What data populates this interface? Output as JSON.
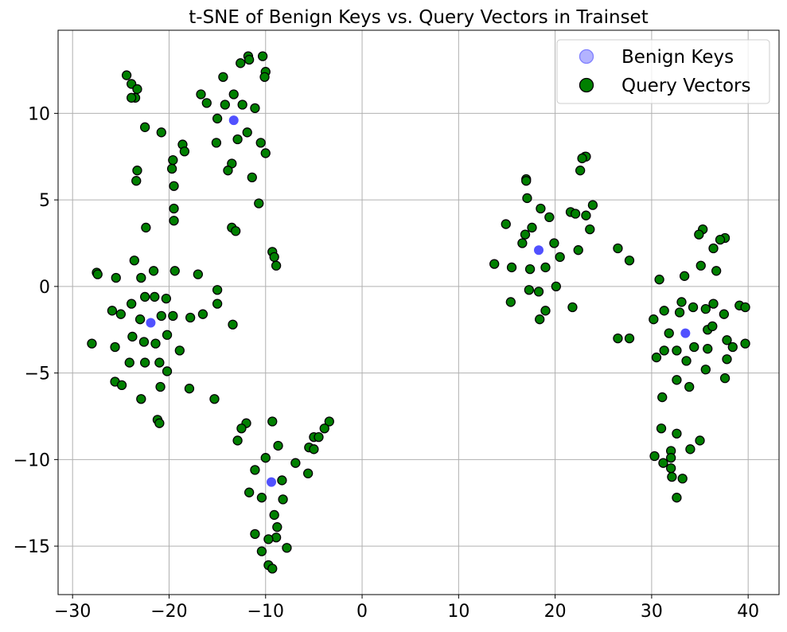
{
  "chart_data": {
    "type": "scatter",
    "title": "t-SNE of Benign Keys vs. Query Vectors in Trainset",
    "xlabel": "",
    "ylabel": "",
    "xlim": [
      -31.5,
      43.2
    ],
    "ylim": [
      -17.8,
      14.8
    ],
    "xticks": [
      -30,
      -20,
      -10,
      0,
      10,
      20,
      30,
      40
    ],
    "yticks": [
      -15,
      -10,
      -5,
      0,
      5,
      10
    ],
    "xtick_labels": [
      "−30",
      "−20",
      "−10",
      "0",
      "10",
      "20",
      "30",
      "40"
    ],
    "ytick_labels": [
      "−15",
      "−10",
      "−5",
      "0",
      "5",
      "10"
    ],
    "grid": true,
    "legend_position": "top-right",
    "series": [
      {
        "name": "Query Vectors",
        "color": "#008000",
        "edge_color": "#000000",
        "points": [
          [
            -24.4,
            12.2
          ],
          [
            -23.9,
            11.7
          ],
          [
            -23.3,
            11.4
          ],
          [
            -23.5,
            10.9
          ],
          [
            -23.9,
            10.9
          ],
          [
            -22.5,
            9.2
          ],
          [
            -20.8,
            8.9
          ],
          [
            -18.6,
            8.2
          ],
          [
            -18.4,
            7.8
          ],
          [
            -19.6,
            7.3
          ],
          [
            -19.7,
            6.8
          ],
          [
            -23.3,
            6.7
          ],
          [
            -23.4,
            6.1
          ],
          [
            -19.5,
            5.8
          ],
          [
            -19.5,
            4.5
          ],
          [
            -19.5,
            3.8
          ],
          [
            -22.4,
            3.4
          ],
          [
            -11.8,
            13.3
          ],
          [
            -10.3,
            13.3
          ],
          [
            -11.7,
            13.1
          ],
          [
            -12.6,
            12.9
          ],
          [
            -10.0,
            12.4
          ],
          [
            -14.4,
            12.1
          ],
          [
            -10.1,
            12.1
          ],
          [
            -16.7,
            11.1
          ],
          [
            -13.3,
            11.1
          ],
          [
            -16.1,
            10.6
          ],
          [
            -14.2,
            10.5
          ],
          [
            -12.4,
            10.5
          ],
          [
            -11.1,
            10.3
          ],
          [
            -15.0,
            9.7
          ],
          [
            -11.9,
            8.9
          ],
          [
            -15.1,
            8.3
          ],
          [
            -12.9,
            8.5
          ],
          [
            -10.5,
            8.3
          ],
          [
            -10.0,
            7.7
          ],
          [
            -13.5,
            7.1
          ],
          [
            -13.9,
            6.7
          ],
          [
            -11.4,
            6.3
          ],
          [
            -10.7,
            4.8
          ],
          [
            -13.5,
            3.4
          ],
          [
            -13.1,
            3.2
          ],
          [
            -9.3,
            2.0
          ],
          [
            -9.1,
            1.7
          ],
          [
            -8.9,
            1.2
          ],
          [
            -27.5,
            0.8
          ],
          [
            -27.4,
            0.7
          ],
          [
            -25.5,
            0.5
          ],
          [
            -23.6,
            1.5
          ],
          [
            -21.6,
            0.9
          ],
          [
            -19.4,
            0.9
          ],
          [
            -22.9,
            0.5
          ],
          [
            -17.0,
            0.7
          ],
          [
            -15.0,
            -0.2
          ],
          [
            -22.5,
            -0.6
          ],
          [
            -21.5,
            -0.6
          ],
          [
            -20.3,
            -0.7
          ],
          [
            -23.9,
            -1.0
          ],
          [
            -15.0,
            -1.0
          ],
          [
            -25.9,
            -1.4
          ],
          [
            -25.0,
            -1.6
          ],
          [
            -20.8,
            -1.7
          ],
          [
            -19.6,
            -1.7
          ],
          [
            -16.5,
            -1.6
          ],
          [
            -17.8,
            -1.8
          ],
          [
            -23.0,
            -1.9
          ],
          [
            -13.4,
            -2.2
          ],
          [
            -23.8,
            -2.9
          ],
          [
            -20.2,
            -2.8
          ],
          [
            -28.0,
            -3.3
          ],
          [
            -22.6,
            -3.2
          ],
          [
            -21.4,
            -3.3
          ],
          [
            -25.6,
            -3.5
          ],
          [
            -18.9,
            -3.7
          ],
          [
            -24.1,
            -4.4
          ],
          [
            -22.5,
            -4.4
          ],
          [
            -21.0,
            -4.4
          ],
          [
            -20.2,
            -4.9
          ],
          [
            -25.6,
            -5.5
          ],
          [
            -24.9,
            -5.7
          ],
          [
            -20.9,
            -5.8
          ],
          [
            -17.9,
            -5.9
          ],
          [
            -22.9,
            -6.5
          ],
          [
            -15.3,
            -6.5
          ],
          [
            -21.2,
            -7.7
          ],
          [
            -21.0,
            -7.9
          ],
          [
            -9.3,
            -7.8
          ],
          [
            -3.4,
            -7.8
          ],
          [
            -12.0,
            -7.9
          ],
          [
            -12.5,
            -8.2
          ],
          [
            -3.9,
            -8.2
          ],
          [
            -5.0,
            -8.7
          ],
          [
            -4.5,
            -8.7
          ],
          [
            -12.9,
            -8.9
          ],
          [
            -8.7,
            -9.2
          ],
          [
            -5.5,
            -9.3
          ],
          [
            -5.0,
            -9.4
          ],
          [
            -10.0,
            -9.9
          ],
          [
            -6.9,
            -10.2
          ],
          [
            -11.1,
            -10.6
          ],
          [
            -5.6,
            -10.8
          ],
          [
            -8.3,
            -11.2
          ],
          [
            -11.7,
            -11.9
          ],
          [
            -10.4,
            -12.2
          ],
          [
            -8.2,
            -12.3
          ],
          [
            -9.1,
            -13.2
          ],
          [
            -8.8,
            -13.9
          ],
          [
            -11.1,
            -14.3
          ],
          [
            -8.9,
            -14.5
          ],
          [
            -9.7,
            -14.6
          ],
          [
            -7.8,
            -15.1
          ],
          [
            -10.4,
            -15.3
          ],
          [
            -9.7,
            -16.1
          ],
          [
            -9.3,
            -16.3
          ],
          [
            23.1,
            7.5
          ],
          [
            23.2,
            7.5
          ],
          [
            22.8,
            7.4
          ],
          [
            22.6,
            6.7
          ],
          [
            17.0,
            6.2
          ],
          [
            17.0,
            6.1
          ],
          [
            17.1,
            5.1
          ],
          [
            23.9,
            4.7
          ],
          [
            18.5,
            4.5
          ],
          [
            21.6,
            4.3
          ],
          [
            22.1,
            4.2
          ],
          [
            23.2,
            4.1
          ],
          [
            19.4,
            4.0
          ],
          [
            14.9,
            3.6
          ],
          [
            17.6,
            3.4
          ],
          [
            23.6,
            3.3
          ],
          [
            16.9,
            3.0
          ],
          [
            16.6,
            2.5
          ],
          [
            19.9,
            2.5
          ],
          [
            22.4,
            2.1
          ],
          [
            26.5,
            2.2
          ],
          [
            20.5,
            1.7
          ],
          [
            27.7,
            1.5
          ],
          [
            13.7,
            1.3
          ],
          [
            15.5,
            1.1
          ],
          [
            17.4,
            1.0
          ],
          [
            19.0,
            1.1
          ],
          [
            20.1,
            0.0
          ],
          [
            17.3,
            -0.2
          ],
          [
            18.3,
            -0.3
          ],
          [
            15.4,
            -0.9
          ],
          [
            21.8,
            -1.2
          ],
          [
            19.0,
            -1.4
          ],
          [
            18.4,
            -1.9
          ],
          [
            35.3,
            3.3
          ],
          [
            34.9,
            3.0
          ],
          [
            37.6,
            2.8
          ],
          [
            37.1,
            2.7
          ],
          [
            36.4,
            2.2
          ],
          [
            35.1,
            1.2
          ],
          [
            36.7,
            0.9
          ],
          [
            33.4,
            0.6
          ],
          [
            30.8,
            0.4
          ],
          [
            33.1,
            -0.9
          ],
          [
            36.4,
            -1.0
          ],
          [
            34.3,
            -1.2
          ],
          [
            35.6,
            -1.3
          ],
          [
            39.1,
            -1.1
          ],
          [
            39.7,
            -1.2
          ],
          [
            31.3,
            -1.4
          ],
          [
            32.9,
            -1.5
          ],
          [
            37.5,
            -1.6
          ],
          [
            30.2,
            -1.9
          ],
          [
            35.8,
            -2.5
          ],
          [
            36.3,
            -2.3
          ],
          [
            31.8,
            -2.7
          ],
          [
            26.5,
            -3.0
          ],
          [
            27.7,
            -3.0
          ],
          [
            37.8,
            -3.1
          ],
          [
            39.7,
            -3.3
          ],
          [
            38.4,
            -3.5
          ],
          [
            34.4,
            -3.5
          ],
          [
            35.8,
            -3.6
          ],
          [
            31.3,
            -3.7
          ],
          [
            32.6,
            -3.7
          ],
          [
            30.5,
            -4.1
          ],
          [
            33.6,
            -4.3
          ],
          [
            37.8,
            -4.2
          ],
          [
            35.6,
            -4.8
          ],
          [
            37.6,
            -5.3
          ],
          [
            32.6,
            -5.4
          ],
          [
            33.9,
            -5.8
          ],
          [
            31.1,
            -6.4
          ],
          [
            31.0,
            -8.2
          ],
          [
            32.6,
            -8.5
          ],
          [
            35.0,
            -8.9
          ],
          [
            34.0,
            -9.4
          ],
          [
            32.0,
            -9.5
          ],
          [
            30.3,
            -9.8
          ],
          [
            32.0,
            -9.9
          ],
          [
            31.2,
            -10.2
          ],
          [
            32.0,
            -10.5
          ],
          [
            32.1,
            -11.0
          ],
          [
            33.2,
            -11.1
          ],
          [
            32.6,
            -12.2
          ]
        ]
      },
      {
        "name": "Benign Keys",
        "color": "#3333ff",
        "points": [
          [
            -13.3,
            9.6
          ],
          [
            -21.9,
            -2.1
          ],
          [
            -9.4,
            -11.3
          ],
          [
            18.3,
            2.1
          ],
          [
            33.5,
            -2.7
          ]
        ]
      }
    ],
    "legend": [
      {
        "label": "Benign Keys",
        "color": "#b3b3ff",
        "edge_color": "#8080ff"
      },
      {
        "label": "Query Vectors",
        "color": "#008000",
        "edge_color": "#000000"
      }
    ]
  }
}
